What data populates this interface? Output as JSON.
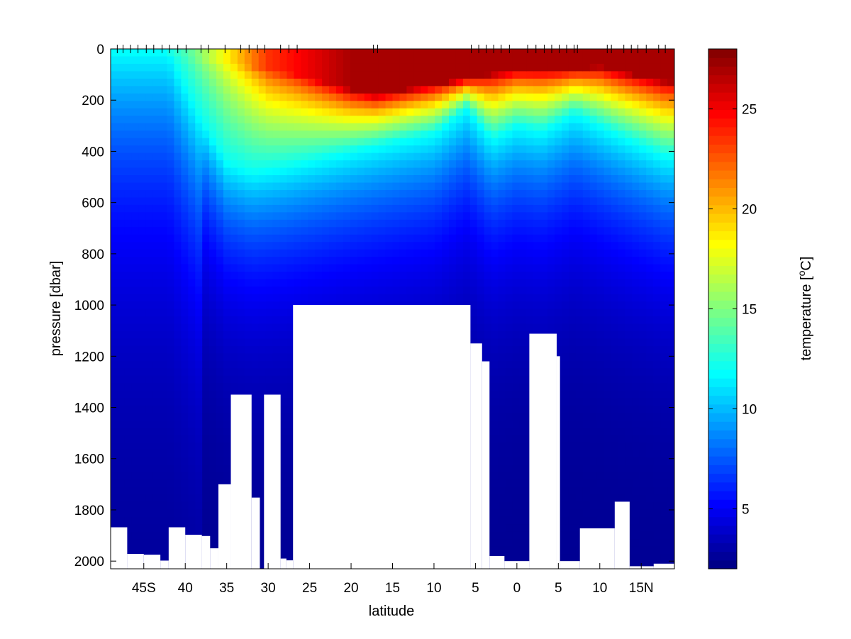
{
  "chart_data": [
    {
      "type": "heatmap",
      "title": "",
      "xlabel": "latitude",
      "ylabel": "pressure [dbar]",
      "colorbar_label": "temperature [",
      "colorbar_label_sup": "o",
      "colorbar_label_tail": "C]",
      "colormap": "jet",
      "x_axis": {
        "ticks": [
          {
            "value": -45,
            "label": "45S"
          },
          {
            "value": -40,
            "label": "40"
          },
          {
            "value": -35,
            "label": "35"
          },
          {
            "value": -30,
            "label": "30"
          },
          {
            "value": -25,
            "label": "25"
          },
          {
            "value": -20,
            "label": "20"
          },
          {
            "value": -15,
            "label": "15"
          },
          {
            "value": -10,
            "label": "10"
          },
          {
            "value": -5,
            "label": "5"
          },
          {
            "value": 0,
            "label": "0"
          },
          {
            "value": 5,
            "label": "5"
          },
          {
            "value": 10,
            "label": "10"
          },
          {
            "value": 15,
            "label": "15N"
          }
        ],
        "xlim": [
          -49,
          19
        ]
      },
      "y_axis": {
        "reversed": true,
        "ylim": [
          0,
          2030
        ],
        "ticks": [
          {
            "value": 0,
            "label": "0"
          },
          {
            "value": 200,
            "label": "200"
          },
          {
            "value": 400,
            "label": "400"
          },
          {
            "value": 600,
            "label": "600"
          },
          {
            "value": 800,
            "label": "800"
          },
          {
            "value": 1000,
            "label": "1000"
          },
          {
            "value": 1200,
            "label": "1200"
          },
          {
            "value": 1400,
            "label": "1400"
          },
          {
            "value": 1600,
            "label": "1600"
          },
          {
            "value": 1800,
            "label": "1800"
          },
          {
            "value": 2000,
            "label": "2000"
          }
        ]
      },
      "colorbar": {
        "clim": [
          2,
          28
        ],
        "ticks": [
          {
            "value": 5,
            "label": "5"
          },
          {
            "value": 10,
            "label": "10"
          },
          {
            "value": 15,
            "label": "15"
          },
          {
            "value": 20,
            "label": "20"
          },
          {
            "value": 25,
            "label": "25"
          }
        ],
        "levels": 60
      },
      "stations_lat": [
        -48.2,
        -47.5,
        -46.6,
        -45.7,
        -44.7,
        -43.8,
        -42.8,
        -41.9,
        -40.9,
        -39.9,
        -38.1,
        -37.2,
        -35.2,
        -33.3,
        -32.3,
        -31.3,
        -30.4,
        -28.5,
        -27.5,
        -26.5,
        -17.3,
        -16.8,
        -5.5,
        -4.6,
        -3.7,
        -2.8,
        -1.9,
        -0.9,
        1.3,
        2.3,
        3.3,
        4.2,
        5.1,
        6.0,
        6.9,
        7.3,
        10.9,
        11.4,
        12.9,
        13.8,
        14.6,
        15.6,
        17.1,
        17.9
      ],
      "profile_mixed_layer_depth_dbar": [
        {
          "lat": -48,
          "depth": 0
        },
        {
          "lat": -44,
          "depth": 0
        },
        {
          "lat": -38,
          "depth": 40
        },
        {
          "lat": -32,
          "depth": 70
        },
        {
          "lat": -27,
          "depth": 100
        },
        {
          "lat": -20,
          "depth": 160
        },
        {
          "lat": -17,
          "depth": 180
        },
        {
          "lat": -10,
          "depth": 140
        },
        {
          "lat": -5,
          "depth": 110
        },
        {
          "lat": 0,
          "depth": 80
        },
        {
          "lat": 5,
          "depth": 80
        },
        {
          "lat": 10,
          "depth": 70
        },
        {
          "lat": 18,
          "depth": 130
        }
      ],
      "profile_12C_isotherm_dbar": [
        {
          "lat": -48,
          "depth": 0
        },
        {
          "lat": -42,
          "depth": 0
        },
        {
          "lat": -38,
          "depth": 280
        },
        {
          "lat": -35,
          "depth": 440
        },
        {
          "lat": -32,
          "depth": 480
        },
        {
          "lat": -28,
          "depth": 460
        },
        {
          "lat": -20,
          "depth": 400
        },
        {
          "lat": -10,
          "depth": 330
        },
        {
          "lat": -6,
          "depth": 230
        },
        {
          "lat": -3,
          "depth": 350
        },
        {
          "lat": 0,
          "depth": 300
        },
        {
          "lat": 3,
          "depth": 320
        },
        {
          "lat": 7,
          "depth": 250
        },
        {
          "lat": 12,
          "depth": 330
        },
        {
          "lat": 18,
          "depth": 420
        }
      ],
      "profile_bottom_dbar": [
        {
          "lat_start": -49,
          "lat_end": -47,
          "depth": 1868
        },
        {
          "lat_start": -47,
          "lat_end": -45,
          "depth": 1972
        },
        {
          "lat_start": -45,
          "lat_end": -43,
          "depth": 1975
        },
        {
          "lat_start": -43,
          "lat_end": -42,
          "depth": 1998
        },
        {
          "lat_start": -42,
          "lat_end": -40,
          "depth": 1868
        },
        {
          "lat_start": -40,
          "lat_end": -38,
          "depth": 1897
        },
        {
          "lat_start": -38,
          "lat_end": -37,
          "depth": 1902
        },
        {
          "lat_start": -37,
          "lat_end": -36,
          "depth": 1950
        },
        {
          "lat_start": -36,
          "lat_end": -34.5,
          "depth": 1700
        },
        {
          "lat_start": -34.5,
          "lat_end": -32,
          "depth": 1350
        },
        {
          "lat_start": -32,
          "lat_end": -31,
          "depth": 1752
        },
        {
          "lat_start": -31,
          "lat_end": -30.5,
          "depth": 2030
        },
        {
          "lat_start": -30.5,
          "lat_end": -28.5,
          "depth": 1350
        },
        {
          "lat_start": -28.5,
          "lat_end": -27.8,
          "depth": 1990
        },
        {
          "lat_start": -27.8,
          "lat_end": -27,
          "depth": 1997
        },
        {
          "lat_start": -27,
          "lat_end": -5.6,
          "depth": 1000
        },
        {
          "lat_start": -5.6,
          "lat_end": -4.2,
          "depth": 1150
        },
        {
          "lat_start": -4.2,
          "lat_end": -3.3,
          "depth": 1220
        },
        {
          "lat_start": -3.3,
          "lat_end": -1.5,
          "depth": 1980
        },
        {
          "lat_start": -1.5,
          "lat_end": 1.5,
          "depth": 2000
        },
        {
          "lat_start": 1.5,
          "lat_end": 4.8,
          "depth": 1112
        },
        {
          "lat_start": 4.8,
          "lat_end": 5.2,
          "depth": 1200
        },
        {
          "lat_start": 5.2,
          "lat_end": 7.6,
          "depth": 2000
        },
        {
          "lat_start": 7.6,
          "lat_end": 11.8,
          "depth": 1872
        },
        {
          "lat_start": 11.8,
          "lat_end": 13.6,
          "depth": 1768
        },
        {
          "lat_start": 13.6,
          "lat_end": 16.5,
          "depth": 2020
        },
        {
          "lat_start": 16.5,
          "lat_end": 19,
          "depth": 2010
        }
      ]
    }
  ]
}
